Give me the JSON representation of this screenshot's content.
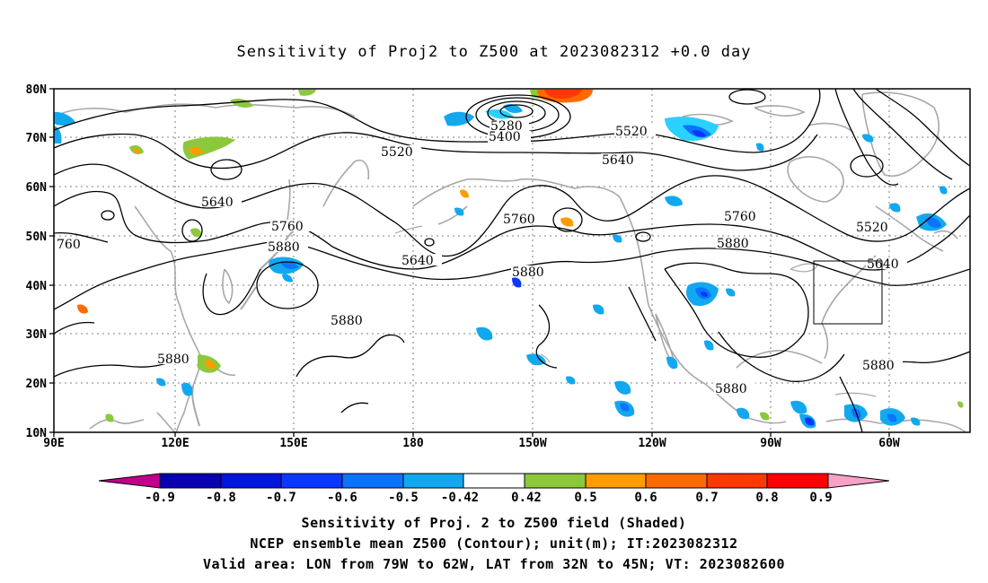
{
  "title": "Sensitivity of Proj2 to Z500 at 2023082312 +0.0 day",
  "map": {
    "lat_labels": [
      "80N",
      "70N",
      "60N",
      "50N",
      "40N",
      "30N",
      "20N",
      "10N"
    ],
    "lon_labels": [
      "90E",
      "120E",
      "150E",
      "180",
      "150W",
      "120W",
      "90W",
      "60W"
    ],
    "contour_labels": [
      "5280",
      "5400",
      "5520",
      "5520",
      "5640",
      "5640",
      "5640",
      "5520",
      "5640",
      "5760",
      "5760",
      "5760",
      "5880",
      "5880",
      "5880",
      "5880",
      "5880",
      "5880",
      "5880",
      "760"
    ],
    "valid_box_label": "Valid area: LON from 79W to 62W, LAT from 32N to 45N"
  },
  "colorbar": {
    "labels": [
      "-0.9",
      "-0.8",
      "-0.7",
      "-0.6",
      "-0.5",
      "-0.42",
      "0.42",
      "0.5",
      "0.6",
      "0.7",
      "0.8",
      "0.9"
    ],
    "colors": [
      "#c0008a",
      "#0a00b4",
      "#0016e0",
      "#0a36ff",
      "#0a74ff",
      "#12a8f0",
      "#2ad0ff",
      "#ffffff",
      "#8cc83c",
      "#ff9c00",
      "#ff6a00",
      "#ff3800",
      "#ff0000",
      "#f7a0c8"
    ]
  },
  "captions": [
    "Sensitivity of Proj. 2 to Z500 field (Shaded)",
    "NCEP ensemble mean Z500 (Contour); unit(m); IT:2023082312",
    "Valid area: LON from 79W to 62W, LAT from 32N to 45N; VT: 2023082600"
  ]
}
